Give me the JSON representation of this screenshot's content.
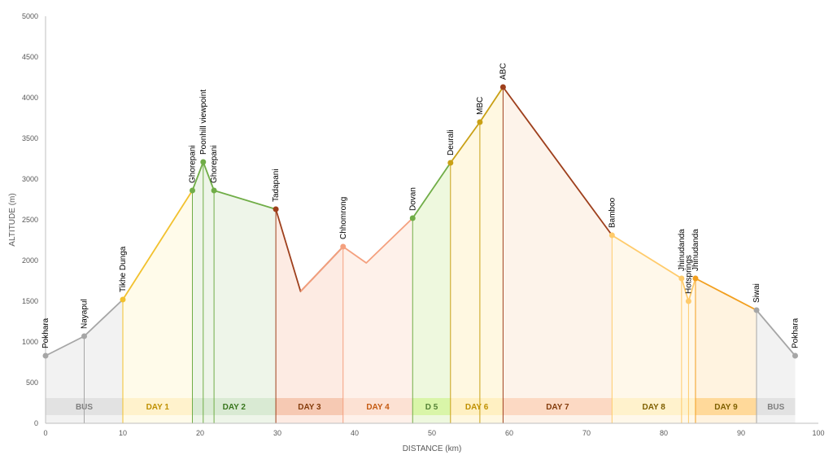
{
  "chart_data": {
    "type": "area",
    "xlabel": "DISTANCE (km)",
    "ylabel": "ALTITUDE (m)",
    "xlim": [
      0,
      100
    ],
    "ylim": [
      0,
      5000
    ],
    "xticks": [
      "0",
      "10",
      "20",
      "30",
      "40",
      "50",
      "60",
      "70",
      "80",
      "90",
      "100"
    ],
    "yticks": [
      "0",
      "500",
      "1000",
      "1500",
      "2000",
      "2500",
      "3000",
      "3500",
      "4000",
      "4500",
      "5000"
    ],
    "grid": false,
    "points": [
      {
        "name": "Pokhara",
        "x": 0,
        "y": 830
      },
      {
        "name": "Nayapul",
        "x": 5,
        "y": 1070
      },
      {
        "name": "Tikhe Dunga",
        "x": 10,
        "y": 1520
      },
      {
        "name": "Ghorepani",
        "x": 19,
        "y": 2860
      },
      {
        "name": "Poonhill viewpoint",
        "x": 20.4,
        "y": 3210
      },
      {
        "name": "Ghorepani",
        "x": 21.8,
        "y": 2860
      },
      {
        "name": "Tadapani",
        "x": 29.8,
        "y": 2630
      },
      {
        "name": "",
        "x": 33,
        "y": 1620
      },
      {
        "name": "Chhomrong",
        "x": 38.5,
        "y": 2170
      },
      {
        "name": "",
        "x": 41.5,
        "y": 1970
      },
      {
        "name": "Dovan",
        "x": 47.5,
        "y": 2520
      },
      {
        "name": "Deurali",
        "x": 52.4,
        "y": 3200
      },
      {
        "name": "MBC",
        "x": 56.2,
        "y": 3700
      },
      {
        "name": "ABC",
        "x": 59.2,
        "y": 4130
      },
      {
        "name": "Bamboo",
        "x": 73.3,
        "y": 2310
      },
      {
        "name": "Jhinudanda",
        "x": 82.3,
        "y": 1780
      },
      {
        "name": "Hotsprings",
        "x": 83.2,
        "y": 1500
      },
      {
        "name": "Jhinudanda",
        "x": 84.1,
        "y": 1780
      },
      {
        "name": "Siwai",
        "x": 92,
        "y": 1390
      },
      {
        "name": "Pokhara",
        "x": 97,
        "y": 830
      }
    ],
    "segments": [
      {
        "from": 0,
        "to": 2,
        "color": "#a6a6a6"
      },
      {
        "from": 2,
        "to": 3,
        "color": "#f2c12e"
      },
      {
        "from": 3,
        "to": 6,
        "color": "#70ad47"
      },
      {
        "from": 6,
        "to": 8,
        "color": "#9e3f1c"
      },
      {
        "from": 8,
        "to": 8,
        "color": "#f4a07e",
        "dot": true
      },
      {
        "from": 7,
        "to": 10,
        "color": "#f4a07e"
      },
      {
        "from": 10,
        "to": 11,
        "color": "#70ad47"
      },
      {
        "from": 11,
        "to": 13,
        "color": "#c9a015"
      },
      {
        "from": 13,
        "to": 14,
        "color": "#9e3f1c"
      },
      {
        "from": 14,
        "to": 17,
        "color": "#ffcb6b"
      },
      {
        "from": 17,
        "to": 18,
        "color": "#f29f1f"
      },
      {
        "from": 18,
        "to": 19,
        "color": "#a6a6a6"
      }
    ],
    "bands": [
      {
        "label": "BUS",
        "x0": 0,
        "x1": 10,
        "fill": "#e2e2e2",
        "text": "#7f7f7f"
      },
      {
        "label": "DAY 1",
        "x0": 10,
        "x1": 19,
        "fill": "#fff2cc",
        "text": "#bf9000"
      },
      {
        "label": "DAY 2",
        "x0": 19,
        "x1": 29.8,
        "fill": "#d9ead3",
        "text": "#38761d"
      },
      {
        "label": "DAY 3",
        "x0": 29.8,
        "x1": 38.5,
        "fill": "#f6c9b3",
        "text": "#843c0c"
      },
      {
        "label": "DAY 4",
        "x0": 38.5,
        "x1": 47.5,
        "fill": "#fce1d3",
        "text": "#c55a11"
      },
      {
        "label": "D 5",
        "x0": 47.5,
        "x1": 52.4,
        "fill": "#d9f5a8",
        "text": "#548235"
      },
      {
        "label": "DAY 6",
        "x0": 52.4,
        "x1": 59.2,
        "fill": "#fff0c2",
        "text": "#bf8f00"
      },
      {
        "label": "DAY 7",
        "x0": 59.2,
        "x1": 73.3,
        "fill": "#fcd9c3",
        "text": "#843c0c"
      },
      {
        "label": "DAY 8",
        "x0": 73.3,
        "x1": 84.1,
        "fill": "#fff2cc",
        "text": "#7f6000"
      },
      {
        "label": "DAY 9",
        "x0": 84.1,
        "x1": 92,
        "fill": "#ffd99a",
        "text": "#7f6000"
      },
      {
        "label": "BUS",
        "x0": 92,
        "x1": 97,
        "fill": "#e2e2e2",
        "text": "#7f7f7f"
      }
    ],
    "fills": [
      {
        "x0": 0,
        "x1": 10,
        "color": "#f2f2f2"
      },
      {
        "x0": 10,
        "x1": 19,
        "color": "#fffbea"
      },
      {
        "x0": 19,
        "x1": 29.8,
        "color": "#eef5e9"
      },
      {
        "x0": 29.8,
        "x1": 38.5,
        "color": "#fdebe3"
      },
      {
        "x0": 38.5,
        "x1": 47.5,
        "color": "#fef1ea"
      },
      {
        "x0": 47.5,
        "x1": 52.4,
        "color": "#eef8de"
      },
      {
        "x0": 52.4,
        "x1": 59.2,
        "color": "#fff8e1"
      },
      {
        "x0": 59.2,
        "x1": 73.3,
        "color": "#fdf3ea"
      },
      {
        "x0": 73.3,
        "x1": 84.1,
        "color": "#fff8ea"
      },
      {
        "x0": 84.1,
        "x1": 92,
        "color": "#fff3e0"
      },
      {
        "x0": 92,
        "x1": 97,
        "color": "#f2f2f2"
      }
    ]
  }
}
